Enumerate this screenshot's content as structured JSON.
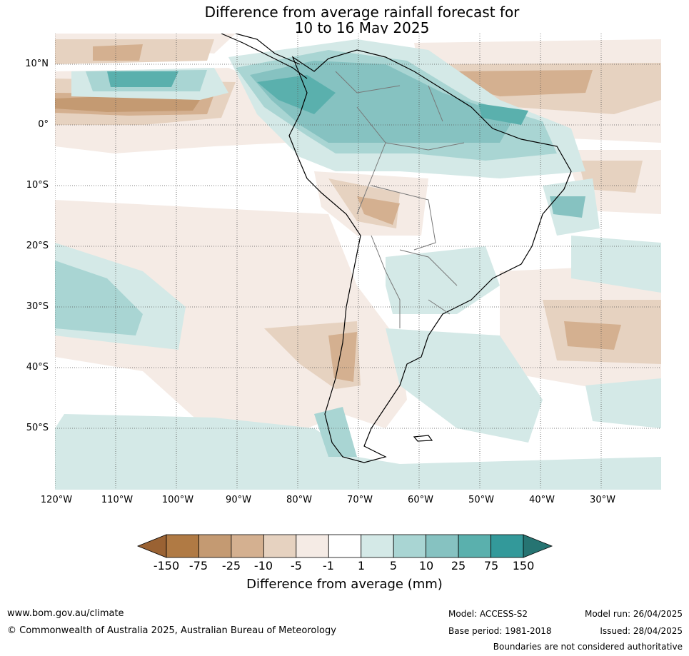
{
  "title": {
    "line1": "Difference from average rainfall forecast for",
    "line2": "10 to 16 May 2025"
  },
  "map": {
    "lat_labels": [
      "10°N",
      "0°",
      "10°S",
      "20°S",
      "30°S",
      "40°S",
      "50°S"
    ],
    "lon_labels": [
      "120°W",
      "110°W",
      "100°W",
      "90°W",
      "80°W",
      "70°W",
      "60°W",
      "50°W",
      "40°W",
      "30°W"
    ],
    "gridlines": true,
    "region": "South America"
  },
  "colorbar": {
    "label": "Difference from average (mm)",
    "ticks": [
      "-150",
      "-75",
      "-25",
      "-10",
      "-5",
      "-1",
      "1",
      "5",
      "10",
      "25",
      "75",
      "150"
    ],
    "colors": [
      "#9a6233",
      "#b07a44",
      "#c49a72",
      "#d4b090",
      "#e6d2c0",
      "#f5ebe5",
      "#ffffff",
      "#d4e9e7",
      "#a9d5d3",
      "#86c2c1",
      "#5ab0ad",
      "#33999a",
      "#267472"
    ]
  },
  "legend_colors": {
    "dry_light": "#f5ebe5",
    "dry_mid": "#e6d2c0",
    "dry_strong": "#d4b090",
    "dry_heavy": "#c49a72",
    "wet_light": "#d4e9e7",
    "wet_mid": "#a9d5d3",
    "wet_strong": "#86c2c1",
    "wet_heavy": "#5ab0ad"
  },
  "footer": {
    "url": "www.bom.gov.au/climate",
    "copyright": "© Commonwealth of Australia 2025, Australian Bureau of Meteorology",
    "model": "Model: ACCESS-S2",
    "base_period": "Base period: 1981-2018",
    "model_run": "Model run: 26/04/2025",
    "issued": "Issued: 28/04/2025",
    "boundaries_note": "Boundaries are not considered authoritative"
  }
}
